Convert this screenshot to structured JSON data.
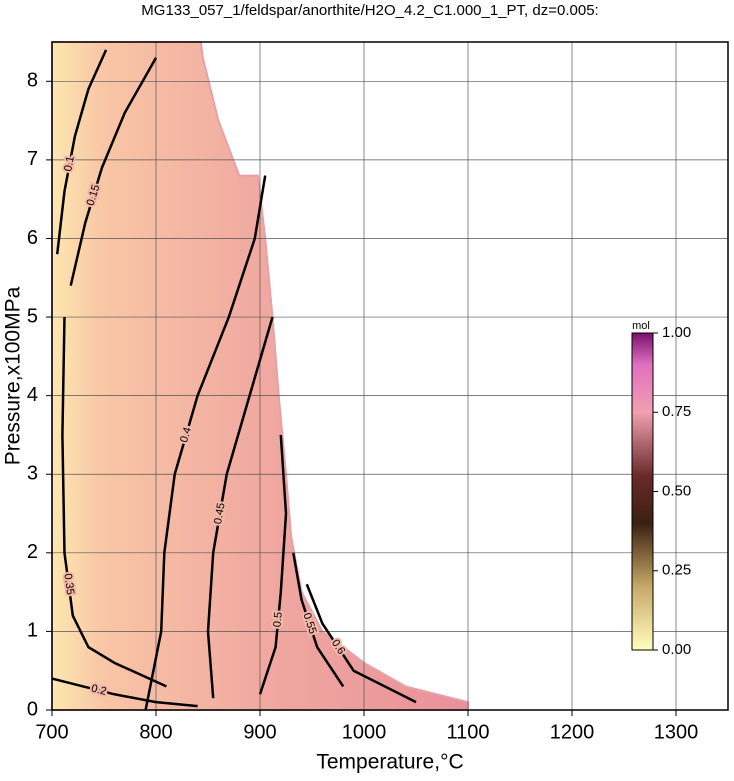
{
  "chart_data": {
    "type": "contour",
    "title": "MG133_057_1/feldspar/anorthite/H2O_4.2_C1.000_1_PT, dz=0.005:",
    "xlabel": "Temperature,°C",
    "ylabel": "Pressure,x100MPa",
    "xlim": [
      700,
      1350
    ],
    "ylim": [
      0,
      8.5
    ],
    "xticks": [
      700,
      800,
      900,
      1000,
      1100,
      1200,
      1300
    ],
    "yticks": [
      0,
      1,
      2,
      3,
      4,
      5,
      6,
      7,
      8
    ],
    "grid": true,
    "colorbar": {
      "label": "mol",
      "lim": [
        0,
        1
      ],
      "ticks": [
        {
          "value": 0,
          "label": "0.00"
        },
        {
          "value": 0.25,
          "label": "0.25"
        },
        {
          "value": 0.5,
          "label": "0.50"
        },
        {
          "value": 0.75,
          "label": "0.75"
        },
        {
          "value": 1,
          "label": "1.00"
        }
      ]
    },
    "region": {
      "x": [
        700,
        1100,
        1100,
        1040,
        1000,
        960,
        940,
        930,
        925,
        918,
        912,
        905,
        898,
        880,
        860,
        845,
        843,
        700
      ],
      "y": [
        0,
        0,
        0.1,
        0.3,
        0.6,
        1.0,
        1.5,
        2.2,
        3.0,
        4.0,
        5.0,
        6.0,
        6.8,
        6.8,
        7.5,
        8.3,
        8.5,
        8.5
      ]
    },
    "contours": [
      {
        "level": 0.1,
        "x": [
          705,
          712,
          722,
          735,
          752
        ],
        "y": [
          5.8,
          6.6,
          7.3,
          7.9,
          8.4
        ]
      },
      {
        "level": 0.15,
        "x": [
          718,
          732,
          748,
          770,
          800
        ],
        "y": [
          5.4,
          6.2,
          6.9,
          7.6,
          8.3
        ]
      },
      {
        "level": 0.2,
        "x": [
          700,
          730,
          760,
          800,
          840
        ],
        "y": [
          0.4,
          0.3,
          0.2,
          0.1,
          0.05
        ]
      },
      {
        "level": 0.35,
        "x": [
          712,
          710,
          712,
          720,
          735,
          760,
          810
        ],
        "y": [
          5.0,
          3.5,
          2.0,
          1.2,
          0.8,
          0.6,
          0.3
        ]
      },
      {
        "level": 0.4,
        "x": [
          790,
          805,
          808,
          818,
          840,
          870,
          895,
          905
        ],
        "y": [
          0,
          1,
          2,
          3,
          4,
          5,
          6,
          6.8
        ]
      },
      {
        "level": 0.45,
        "x": [
          855,
          850,
          855,
          868,
          890,
          912
        ],
        "y": [
          0.15,
          1,
          2,
          3,
          4,
          5
        ]
      },
      {
        "level": 0.5,
        "x": [
          900,
          915,
          920,
          925,
          920
        ],
        "y": [
          0.2,
          0.8,
          1.5,
          2.5,
          3.5
        ]
      },
      {
        "level": 0.55,
        "x": [
          980,
          955,
          940,
          932
        ],
        "y": [
          0.3,
          0.8,
          1.4,
          2.0
        ]
      },
      {
        "level": 0.6,
        "x": [
          1050,
          990,
          960,
          945
        ],
        "y": [
          0.1,
          0.5,
          1.1,
          1.6
        ]
      }
    ]
  }
}
